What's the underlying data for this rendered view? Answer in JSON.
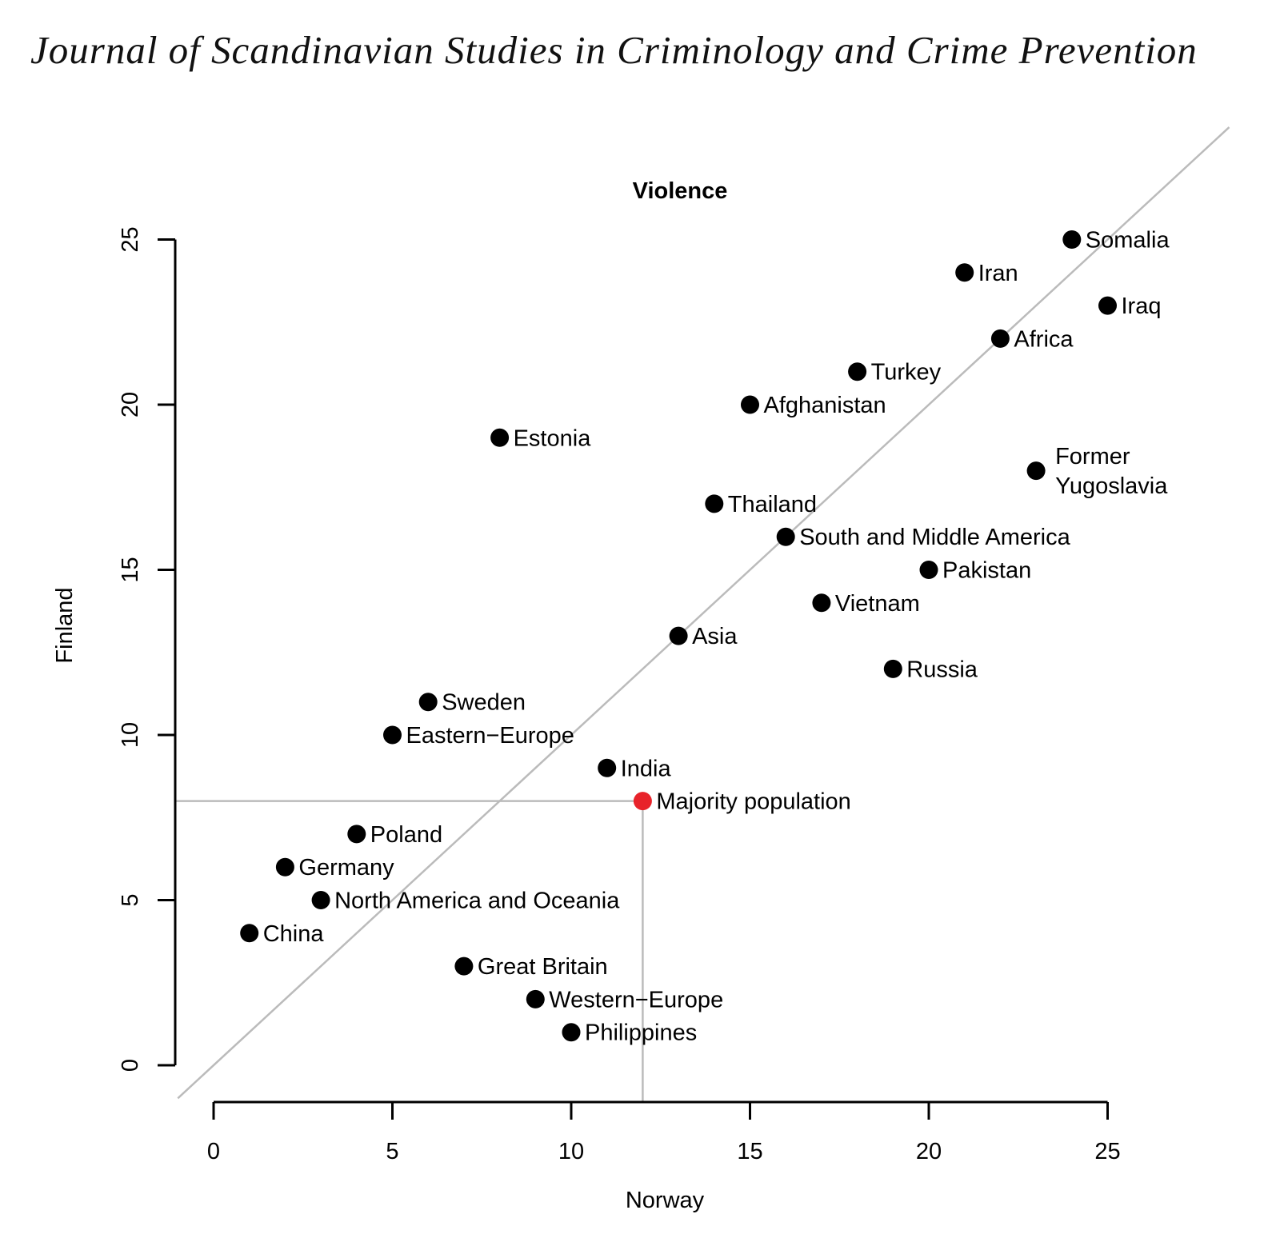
{
  "header": {
    "journal_title": "Journal of Scandinavian Studies in Criminology and Crime Prevention"
  },
  "chart_data": {
    "type": "scatter",
    "title": "Violence",
    "xlabel": "Norway",
    "ylabel": "Finland",
    "xlim": [
      -1,
      26
    ],
    "ylim": [
      -1,
      26
    ],
    "x_ticks": [
      0,
      5,
      10,
      15,
      20,
      25
    ],
    "y_ticks": [
      0,
      5,
      10,
      15,
      20,
      25
    ],
    "colors": {
      "point": "#000000",
      "highlight": "#e8232a",
      "reference_line": "#bbbbbb"
    },
    "reference_line": {
      "type": "diagonal",
      "slope": 1,
      "intercept": 0
    },
    "highlight_crosshair": {
      "x": 12,
      "y": 8
    },
    "points": [
      {
        "label": "Somalia",
        "x": 24,
        "y": 25
      },
      {
        "label": "Iran",
        "x": 21,
        "y": 24
      },
      {
        "label": "Iraq",
        "x": 25,
        "y": 23
      },
      {
        "label": "Africa",
        "x": 22,
        "y": 22
      },
      {
        "label": "Turkey",
        "x": 18,
        "y": 21
      },
      {
        "label": "Afghanistan",
        "x": 15,
        "y": 20
      },
      {
        "label": "Estonia",
        "x": 8,
        "y": 19
      },
      {
        "label": "Former\nYugoslavia",
        "x": 23,
        "y": 18
      },
      {
        "label": "Thailand",
        "x": 14,
        "y": 17
      },
      {
        "label": "South and Middle America",
        "x": 16,
        "y": 16
      },
      {
        "label": "Pakistan",
        "x": 20,
        "y": 15
      },
      {
        "label": "Vietnam",
        "x": 17,
        "y": 14
      },
      {
        "label": "Asia",
        "x": 13,
        "y": 13
      },
      {
        "label": "Russia",
        "x": 19,
        "y": 12
      },
      {
        "label": "Sweden",
        "x": 6,
        "y": 11
      },
      {
        "label": "Eastern−Europe",
        "x": 5,
        "y": 10
      },
      {
        "label": "India",
        "x": 11,
        "y": 9
      },
      {
        "label": "Majority population",
        "x": 12,
        "y": 8,
        "highlight": true
      },
      {
        "label": "Poland",
        "x": 4,
        "y": 7
      },
      {
        "label": "Germany",
        "x": 2,
        "y": 6
      },
      {
        "label": "North America and Oceania",
        "x": 3,
        "y": 5
      },
      {
        "label": "China",
        "x": 1,
        "y": 4
      },
      {
        "label": "Great Britain",
        "x": 7,
        "y": 3
      },
      {
        "label": "Western−Europe",
        "x": 9,
        "y": 2
      },
      {
        "label": "Philippines",
        "x": 10,
        "y": 1
      }
    ]
  }
}
